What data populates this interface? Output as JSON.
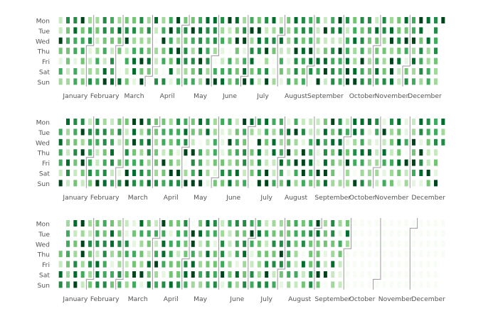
{
  "chart_data": [
    {
      "type": "heatmap",
      "subtype": "calendar",
      "day_labels": [
        "Mon",
        "Tue",
        "Wed",
        "Thu",
        "Fri",
        "Sat",
        "Sun"
      ],
      "month_labels": [
        "January",
        "February",
        "March",
        "April",
        "May",
        "June",
        "July",
        "August",
        "September",
        "October",
        "November",
        "December"
      ],
      "start_weekday": 0,
      "days_with_data": 365,
      "seed": 11,
      "colors": [
        "#f7fcf5",
        "#e5f5e0",
        "#c7e9c0",
        "#a1d99b",
        "#74c476",
        "#41ab5d",
        "#238b45",
        "#006d2c",
        "#00441b"
      ],
      "month_separators": true
    },
    {
      "type": "heatmap",
      "subtype": "calendar",
      "day_labels": [
        "Mon",
        "Tue",
        "Wed",
        "Thu",
        "Fri",
        "Sat",
        "Sun"
      ],
      "month_labels": [
        "January",
        "February",
        "March",
        "April",
        "May",
        "June",
        "July",
        "August",
        "September",
        "October",
        "November",
        "December"
      ],
      "start_weekday": 1,
      "days_with_data": 366,
      "seed": 29,
      "colors": [
        "#f7fcf5",
        "#e5f5e0",
        "#c7e9c0",
        "#a1d99b",
        "#74c476",
        "#41ab5d",
        "#238b45",
        "#006d2c",
        "#00441b"
      ],
      "month_separators": true
    },
    {
      "type": "heatmap",
      "subtype": "calendar",
      "day_labels": [
        "Mon",
        "Tue",
        "Wed",
        "Thu",
        "Fri",
        "Sat",
        "Sun"
      ],
      "month_labels": [
        "January",
        "February",
        "March",
        "April",
        "May",
        "June",
        "July",
        "August",
        "September",
        "October",
        "November",
        "December"
      ],
      "start_weekday": 3,
      "days_with_data": 273,
      "seed": 47,
      "colors": [
        "#f7fcf5",
        "#e5f5e0",
        "#c7e9c0",
        "#a1d99b",
        "#74c476",
        "#41ab5d",
        "#238b45",
        "#006d2c",
        "#00441b"
      ],
      "month_separators": true
    }
  ]
}
